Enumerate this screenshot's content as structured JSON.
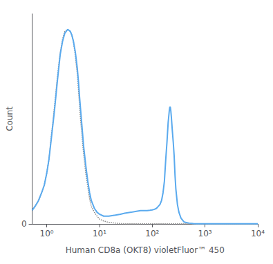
{
  "chart_data": {
    "type": "line",
    "xlabel": "Human CD8a (OKT8) violetFluor™ 450",
    "ylabel": "Count",
    "log": "x",
    "grid": false,
    "xlim": [
      0.53,
      10000
    ],
    "ylim": [
      0,
      1.08
    ],
    "xticks": [
      {
        "value": 1,
        "label": "10⁰"
      },
      {
        "value": 10,
        "label": "10¹"
      },
      {
        "value": 100,
        "label": "10²"
      },
      {
        "value": 1000,
        "label": "10³"
      },
      {
        "value": 10000,
        "label": "10⁴"
      }
    ],
    "yticks": [
      0
    ],
    "series": [
      {
        "color": "#888888",
        "line_style": "dotted",
        "x": [
          0.53,
          0.6,
          0.7,
          0.8,
          0.9,
          1.0,
          1.1,
          1.2,
          1.4,
          1.6,
          1.8,
          2.0,
          2.2,
          2.5,
          2.8,
          3.0,
          3.2,
          3.5,
          3.8,
          4.0,
          4.2,
          4.5,
          5.0,
          5.5,
          6.0,
          6.5,
          7.0,
          8.0,
          9.0,
          10.0,
          12.0,
          15.0,
          20.0,
          25.0,
          30.0,
          40.0,
          50.0,
          100.0,
          200.0,
          500.0,
          1000.0,
          10000.0
        ],
        "values": [
          0.07,
          0.09,
          0.12,
          0.16,
          0.2,
          0.26,
          0.33,
          0.43,
          0.6,
          0.76,
          0.88,
          0.95,
          0.99,
          1.0,
          0.99,
          0.97,
          0.94,
          0.86,
          0.77,
          0.69,
          0.6,
          0.5,
          0.36,
          0.26,
          0.19,
          0.13,
          0.09,
          0.06,
          0.04,
          0.025,
          0.015,
          0.008,
          0.004,
          0.002,
          0.001,
          0.001,
          0.001,
          0.001,
          0.001,
          0.001,
          0.001,
          0.001
        ]
      },
      {
        "color": "#5aaaee",
        "line_style": "solid",
        "x": [
          0.53,
          0.6,
          0.7,
          0.8,
          0.9,
          1.0,
          1.1,
          1.2,
          1.4,
          1.6,
          1.8,
          2.0,
          2.2,
          2.5,
          2.8,
          3.0,
          3.2,
          3.5,
          3.8,
          4.0,
          4.2,
          4.5,
          5.0,
          5.5,
          6.0,
          6.5,
          7.0,
          8.0,
          9.0,
          10.0,
          12.0,
          15.0,
          20.0,
          25.0,
          30.0,
          40.0,
          50.0,
          60.0,
          70.0,
          80.0,
          90.0,
          100.0,
          110.0,
          120.0,
          130.0,
          140.0,
          150.0,
          160.0,
          170.0,
          180.0,
          190.0,
          200.0,
          210.0,
          215.0,
          220.0,
          225.0,
          230.0,
          240.0,
          250.0,
          260.0,
          270.0,
          280.0,
          300.0,
          320.0,
          350.0,
          400.0,
          500.0,
          600.0,
          700.0,
          800.0,
          1000.0,
          2000.0,
          5000.0,
          10000.0
        ],
        "values": [
          0.07,
          0.09,
          0.12,
          0.16,
          0.2,
          0.26,
          0.33,
          0.42,
          0.58,
          0.74,
          0.87,
          0.94,
          0.98,
          1.0,
          0.99,
          0.97,
          0.94,
          0.88,
          0.8,
          0.73,
          0.65,
          0.55,
          0.4,
          0.3,
          0.22,
          0.16,
          0.12,
          0.08,
          0.06,
          0.05,
          0.04,
          0.04,
          0.045,
          0.05,
          0.055,
          0.06,
          0.065,
          0.068,
          0.068,
          0.068,
          0.07,
          0.072,
          0.075,
          0.08,
          0.09,
          0.1,
          0.12,
          0.16,
          0.22,
          0.33,
          0.42,
          0.52,
          0.58,
          0.6,
          0.6,
          0.58,
          0.55,
          0.48,
          0.42,
          0.35,
          0.25,
          0.18,
          0.1,
          0.06,
          0.03,
          0.01,
          0.004,
          0.002,
          0.001,
          0.001,
          0.001,
          0.001,
          0.001,
          0.001
        ]
      }
    ]
  }
}
